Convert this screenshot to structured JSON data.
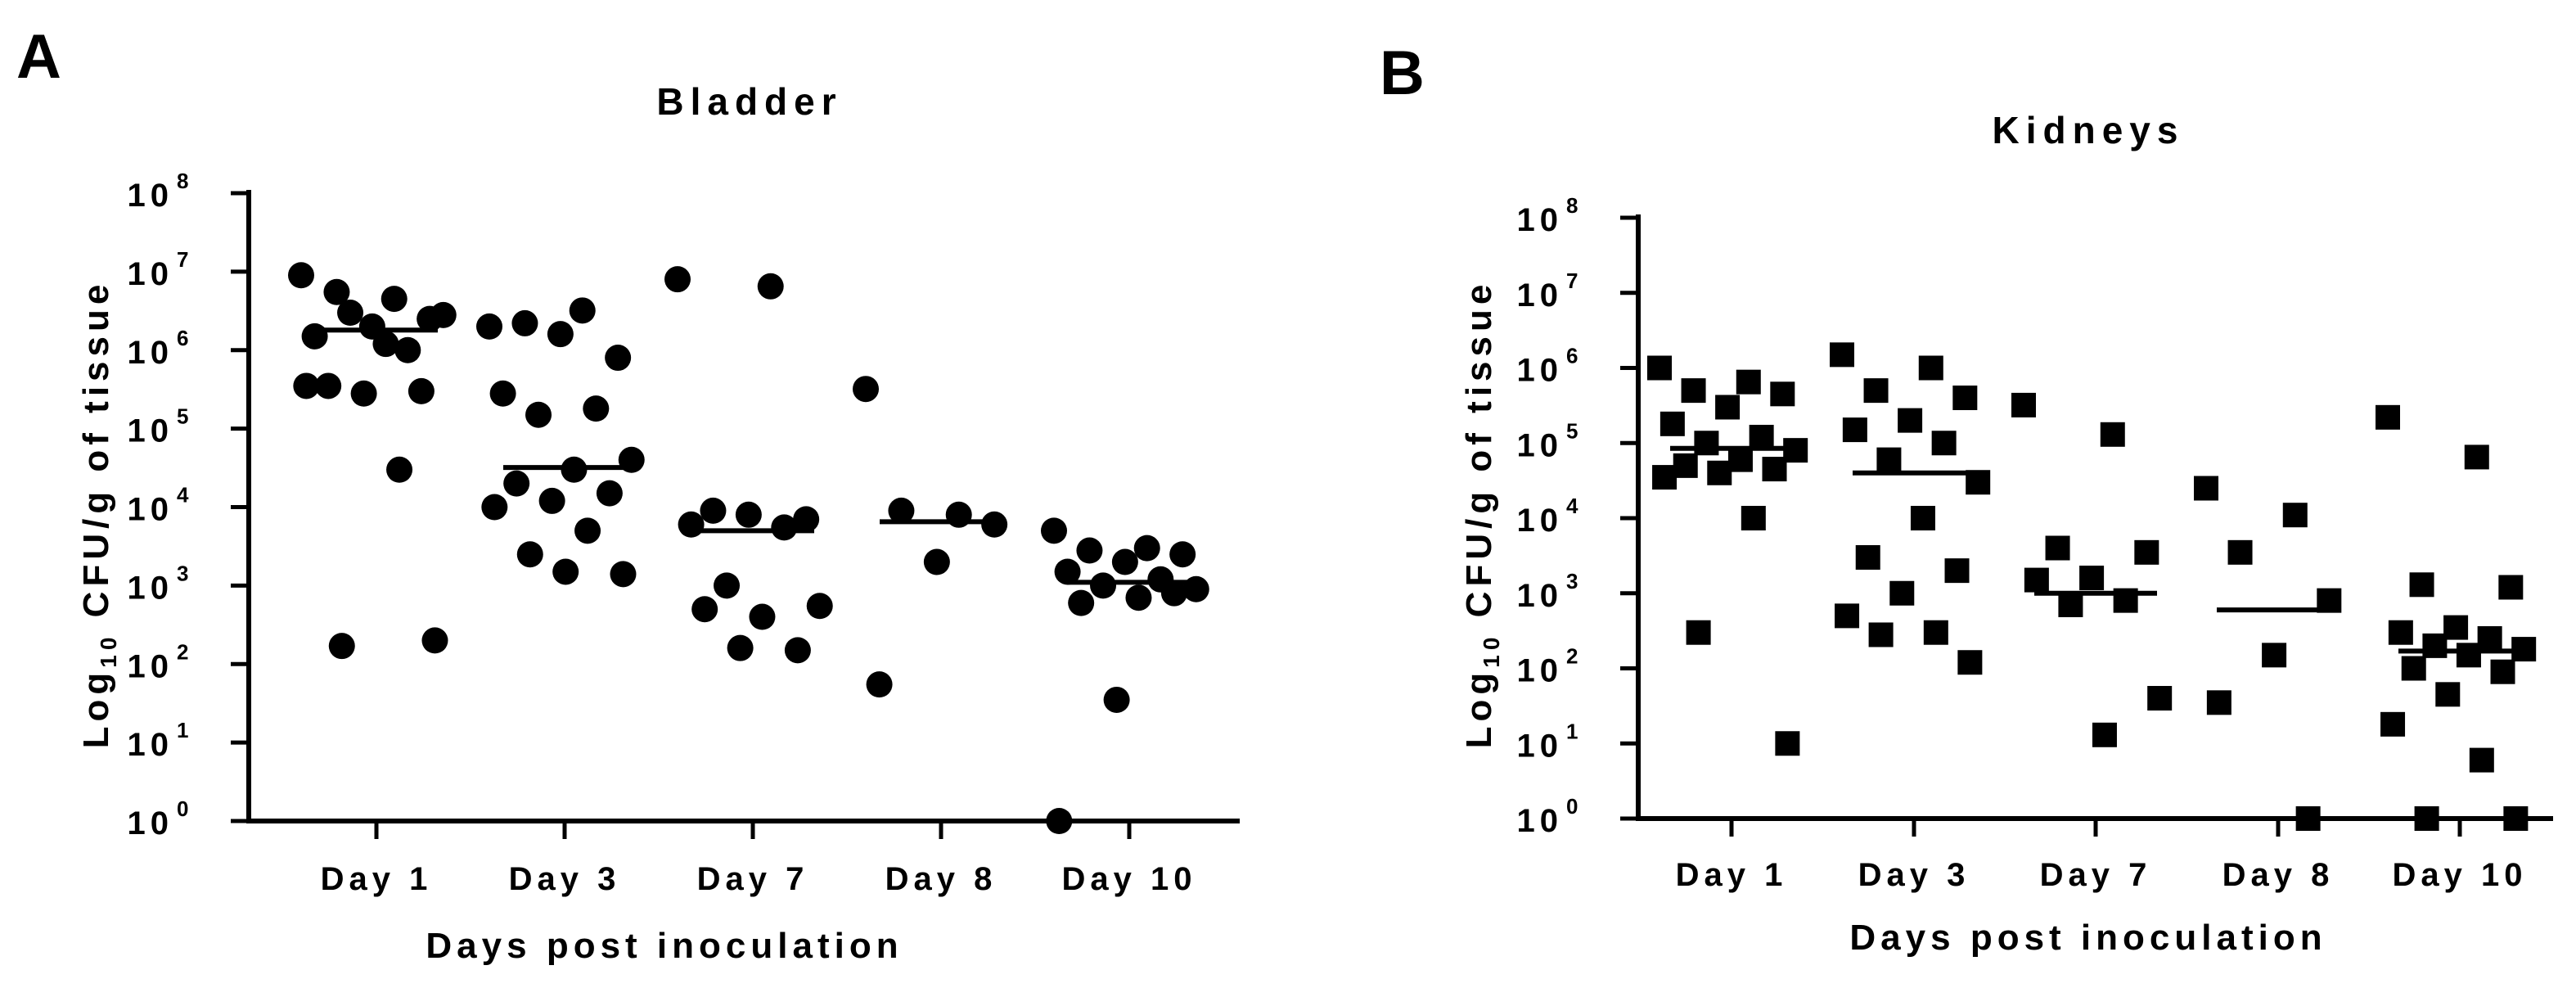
{
  "chart_data": [
    {
      "type": "scatter",
      "panel_label": "A",
      "title": "Bladder",
      "marker": "circle",
      "ylabel": {
        "pre": "Log",
        "sub": "10",
        "post": " CFU/g of tissue"
      },
      "xlabel": "Days post inoculation",
      "yscale": "log",
      "ylim": [
        1,
        100000000
      ],
      "yticks": [
        {
          "base": "10",
          "exp": "0",
          "value": 1
        },
        {
          "base": "10",
          "exp": "1",
          "value": 10
        },
        {
          "base": "10",
          "exp": "2",
          "value": 100
        },
        {
          "base": "10",
          "exp": "3",
          "value": 1000
        },
        {
          "base": "10",
          "exp": "4",
          "value": 10000
        },
        {
          "base": "10",
          "exp": "5",
          "value": 100000
        },
        {
          "base": "10",
          "exp": "6",
          "value": 1000000
        },
        {
          "base": "10",
          "exp": "7",
          "value": 10000000
        },
        {
          "base": "10",
          "exp": "8",
          "value": 100000000
        }
      ],
      "categories": [
        "Day 1",
        "Day 3",
        "Day 7",
        "Day 8",
        "Day 10"
      ],
      "groups": [
        {
          "category": "Day 1",
          "median": 1800000,
          "points": [
            9000000,
            4500000,
            5500000,
            2500000,
            2000000,
            1500000,
            1000000,
            3000000,
            2800000,
            1200000,
            350000,
            300000,
            280000,
            350000,
            30000,
            170,
            200
          ]
        },
        {
          "category": "Day 3",
          "median": 32000,
          "points": [
            2000000,
            3200000,
            2200000,
            800000,
            1600000,
            280000,
            180000,
            150000,
            40000,
            30000,
            20000,
            15000,
            12000,
            10000,
            5000,
            2500,
            1400,
            1500
          ]
        },
        {
          "category": "Day 7",
          "median": 5000,
          "points": [
            8000000,
            6500000,
            9000,
            7000,
            8000,
            6000,
            5500,
            1000,
            550,
            400,
            500,
            150,
            160
          ]
        },
        {
          "category": "Day 8",
          "median": 6500,
          "points": [
            320000,
            8000,
            9000,
            6000,
            2000,
            55
          ]
        },
        {
          "category": "Day 10",
          "median": 1100,
          "points": [
            5000,
            3000,
            2800,
            2500,
            2000,
            1500,
            1200,
            1000,
            900,
            700,
            600,
            800,
            35,
            1
          ]
        }
      ]
    },
    {
      "type": "scatter",
      "panel_label": "B",
      "title": "Kidneys",
      "marker": "square",
      "ylabel": {
        "pre": "Log",
        "sub": "10",
        "post": " CFU/g of tissue"
      },
      "xlabel": "Days post inoculation",
      "yscale": "log",
      "ylim": [
        1,
        100000000
      ],
      "yticks": [
        {
          "base": "10",
          "exp": "0",
          "value": 1
        },
        {
          "base": "10",
          "exp": "1",
          "value": 10
        },
        {
          "base": "10",
          "exp": "2",
          "value": 100
        },
        {
          "base": "10",
          "exp": "3",
          "value": 1000
        },
        {
          "base": "10",
          "exp": "4",
          "value": 10000
        },
        {
          "base": "10",
          "exp": "5",
          "value": 100000
        },
        {
          "base": "10",
          "exp": "6",
          "value": 1000000
        },
        {
          "base": "10",
          "exp": "7",
          "value": 10000000
        },
        {
          "base": "10",
          "exp": "8",
          "value": 100000000
        }
      ],
      "categories": [
        "Day 1",
        "Day 3",
        "Day 7",
        "Day 8",
        "Day 10"
      ],
      "groups": [
        {
          "category": "Day 1",
          "median": 85000,
          "points": [
            1000000,
            650000,
            500000,
            450000,
            300000,
            180000,
            120000,
            100000,
            80000,
            60000,
            50000,
            45000,
            40000,
            35000,
            10000,
            300,
            10
          ]
        },
        {
          "category": "Day 3",
          "median": 40000,
          "points": [
            1500000,
            1000000,
            500000,
            400000,
            200000,
            150000,
            100000,
            60000,
            30000,
            10000,
            3000,
            2000,
            1000,
            500,
            300,
            280,
            120
          ]
        },
        {
          "category": "Day 7",
          "median": 1000,
          "points": [
            320000,
            130000,
            4000,
            3500,
            1600,
            1500,
            800,
            700,
            40,
            13
          ]
        },
        {
          "category": "Day 8",
          "median": 600,
          "points": [
            25000,
            11000,
            3500,
            800,
            150,
            35,
            1
          ]
        },
        {
          "category": "Day 10",
          "median": 170,
          "points": [
            220000,
            65000,
            1300,
            1200,
            350,
            300,
            250,
            200,
            180,
            150,
            100,
            90,
            45,
            18,
            6,
            1,
            1
          ]
        }
      ]
    }
  ]
}
